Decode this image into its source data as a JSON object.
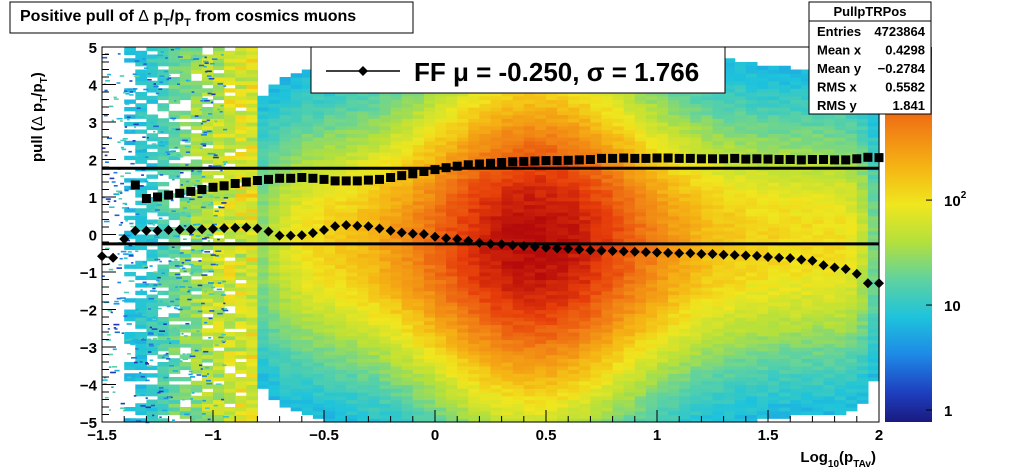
{
  "title": {
    "pre": "Positive pull of ",
    "delta": "Δ",
    "p1": " p",
    "sub1": "T",
    "slash": "/p",
    "sub2": "T",
    "post": " from cosmics muons"
  },
  "ylabel": {
    "pre": "pull (",
    "delta": "Δ",
    "p1": " p",
    "sub1": "T",
    "slash": "/p",
    "sub2": "T",
    "post": ")"
  },
  "xlabel": {
    "pre": "Log",
    "sub": "10",
    "mid": "(p",
    "sub2": "TAv",
    "post": ")"
  },
  "legend": {
    "label": "FF μ = -0.250, σ =   1.766"
  },
  "stats": {
    "name": "PullpTRPos",
    "rows": [
      {
        "key": "Entries",
        "value": "4723864"
      },
      {
        "key": "Mean x",
        "value": "0.4298"
      },
      {
        "key": "Mean y",
        "value": "−0.2784"
      },
      {
        "key": "RMS x",
        "value": "0.5582"
      },
      {
        "key": "RMS y",
        "value": "1.841"
      }
    ]
  },
  "palette": {
    "labels": [
      {
        "base": "10",
        "exp": "2",
        "value": 100
      },
      {
        "base": "10",
        "exp": "",
        "value": 10
      },
      {
        "base": "1",
        "exp": "",
        "value": 1
      }
    ]
  },
  "chart_data": {
    "type": "heatmap",
    "xlim": [
      -1.5,
      2
    ],
    "ylim": [
      -5,
      5
    ],
    "x_ticks": [
      {
        "v": -1.5,
        "label": "−1.5"
      },
      {
        "v": -1,
        "label": "−1"
      },
      {
        "v": -0.5,
        "label": "−0.5"
      },
      {
        "v": 0,
        "label": "0"
      },
      {
        "v": 0.5,
        "label": "0.5"
      },
      {
        "v": 1,
        "label": "1"
      },
      {
        "v": 1.5,
        "label": "1.5"
      },
      {
        "v": 2,
        "label": "2"
      }
    ],
    "y_ticks": [
      {
        "v": 5,
        "label": "5"
      },
      {
        "v": 4,
        "label": "4"
      },
      {
        "v": 3,
        "label": "3"
      },
      {
        "v": 2,
        "label": "2"
      },
      {
        "v": 1,
        "label": "1"
      },
      {
        "v": 0,
        "label": "0"
      },
      {
        "v": -1,
        "label": "−1"
      },
      {
        "v": -2,
        "label": "−2"
      },
      {
        "v": -3,
        "label": "−3"
      },
      {
        "v": -4,
        "label": "−4"
      },
      {
        "v": -5,
        "label": "−5"
      }
    ],
    "z_scale": "log",
    "z_range": [
      1,
      300
    ],
    "hlines": [
      1.766,
      -0.25
    ],
    "sigma_points": [
      [
        -1.35,
        1.32
      ],
      [
        -1.3,
        0.96
      ],
      [
        -1.25,
        1.0
      ],
      [
        -1.2,
        1.05
      ],
      [
        -1.15,
        1.1
      ],
      [
        -1.1,
        1.15
      ],
      [
        -1.05,
        1.2
      ],
      [
        -1.0,
        1.26
      ],
      [
        -0.95,
        1.3
      ],
      [
        -0.9,
        1.36
      ],
      [
        -0.85,
        1.4
      ],
      [
        -0.8,
        1.44
      ],
      [
        -0.75,
        1.47
      ],
      [
        -0.7,
        1.5
      ],
      [
        -0.65,
        1.5
      ],
      [
        -0.6,
        1.52
      ],
      [
        -0.55,
        1.5
      ],
      [
        -0.5,
        1.47
      ],
      [
        -0.45,
        1.43
      ],
      [
        -0.4,
        1.43
      ],
      [
        -0.35,
        1.43
      ],
      [
        -0.3,
        1.45
      ],
      [
        -0.25,
        1.47
      ],
      [
        -0.2,
        1.52
      ],
      [
        -0.15,
        1.57
      ],
      [
        -0.1,
        1.62
      ],
      [
        -0.05,
        1.68
      ],
      [
        0.0,
        1.73
      ],
      [
        0.05,
        1.78
      ],
      [
        0.1,
        1.82
      ],
      [
        0.15,
        1.86
      ],
      [
        0.2,
        1.88
      ],
      [
        0.25,
        1.9
      ],
      [
        0.3,
        1.92
      ],
      [
        0.35,
        1.94
      ],
      [
        0.4,
        1.95
      ],
      [
        0.45,
        1.96
      ],
      [
        0.5,
        1.97
      ],
      [
        0.55,
        1.97
      ],
      [
        0.6,
        1.98
      ],
      [
        0.65,
        1.99
      ],
      [
        0.7,
        2.0
      ],
      [
        0.75,
        2.03
      ],
      [
        0.8,
        2.03
      ],
      [
        0.85,
        2.04
      ],
      [
        0.9,
        2.03
      ],
      [
        0.95,
        2.03
      ],
      [
        1.0,
        2.04
      ],
      [
        1.05,
        2.04
      ],
      [
        1.1,
        2.03
      ],
      [
        1.15,
        2.03
      ],
      [
        1.2,
        2.02
      ],
      [
        1.25,
        2.02
      ],
      [
        1.3,
        2.02
      ],
      [
        1.35,
        2.03
      ],
      [
        1.4,
        2.01
      ],
      [
        1.45,
        2.02
      ],
      [
        1.5,
        2.01
      ],
      [
        1.55,
        2.0
      ],
      [
        1.6,
        2.0
      ],
      [
        1.65,
        1.99
      ],
      [
        1.7,
        2.0
      ],
      [
        1.75,
        2.0
      ],
      [
        1.8,
        1.99
      ],
      [
        1.85,
        1.99
      ],
      [
        1.9,
        2.02
      ],
      [
        1.95,
        2.06
      ],
      [
        2.0,
        2.05
      ]
    ],
    "mean_points": [
      [
        -1.5,
        -0.58
      ],
      [
        -1.45,
        -0.62
      ],
      [
        -1.4,
        -0.12
      ],
      [
        -1.35,
        0.1
      ],
      [
        -1.3,
        0.1
      ],
      [
        -1.25,
        0.1
      ],
      [
        -1.2,
        0.12
      ],
      [
        -1.15,
        0.13
      ],
      [
        -1.1,
        0.13
      ],
      [
        -1.05,
        0.14
      ],
      [
        -1.0,
        0.15
      ],
      [
        -0.95,
        0.17
      ],
      [
        -0.9,
        0.18
      ],
      [
        -0.85,
        0.19
      ],
      [
        -0.8,
        0.16
      ],
      [
        -0.75,
        0.08
      ],
      [
        -0.7,
        -0.03
      ],
      [
        -0.65,
        -0.03
      ],
      [
        -0.6,
        -0.02
      ],
      [
        -0.55,
        0.04
      ],
      [
        -0.5,
        0.12
      ],
      [
        -0.45,
        0.22
      ],
      [
        -0.4,
        0.25
      ],
      [
        -0.35,
        0.23
      ],
      [
        -0.3,
        0.22
      ],
      [
        -0.25,
        0.16
      ],
      [
        -0.2,
        0.1
      ],
      [
        -0.15,
        0.05
      ],
      [
        -0.1,
        0.02
      ],
      [
        -0.05,
        0.01
      ],
      [
        0.0,
        -0.06
      ],
      [
        0.05,
        -0.1
      ],
      [
        0.1,
        -0.12
      ],
      [
        0.15,
        -0.17
      ],
      [
        0.2,
        -0.22
      ],
      [
        0.25,
        -0.25
      ],
      [
        0.3,
        -0.26
      ],
      [
        0.35,
        -0.29
      ],
      [
        0.4,
        -0.31
      ],
      [
        0.45,
        -0.33
      ],
      [
        0.5,
        -0.35
      ],
      [
        0.55,
        -0.37
      ],
      [
        0.6,
        -0.38
      ],
      [
        0.65,
        -0.4
      ],
      [
        0.7,
        -0.42
      ],
      [
        0.75,
        -0.43
      ],
      [
        0.8,
        -0.44
      ],
      [
        0.85,
        -0.45
      ],
      [
        0.9,
        -0.46
      ],
      [
        0.95,
        -0.47
      ],
      [
        1.0,
        -0.48
      ],
      [
        1.05,
        -0.49
      ],
      [
        1.1,
        -0.5
      ],
      [
        1.15,
        -0.5
      ],
      [
        1.2,
        -0.52
      ],
      [
        1.25,
        -0.52
      ],
      [
        1.3,
        -0.54
      ],
      [
        1.35,
        -0.55
      ],
      [
        1.4,
        -0.56
      ],
      [
        1.45,
        -0.57
      ],
      [
        1.5,
        -0.6
      ],
      [
        1.55,
        -0.62
      ],
      [
        1.6,
        -0.63
      ],
      [
        1.65,
        -0.67
      ],
      [
        1.7,
        -0.7
      ],
      [
        1.75,
        -0.82
      ],
      [
        1.8,
        -0.88
      ],
      [
        1.85,
        -0.92
      ],
      [
        1.9,
        -1.05
      ],
      [
        1.95,
        -1.3
      ],
      [
        2.0,
        -1.3
      ]
    ]
  }
}
